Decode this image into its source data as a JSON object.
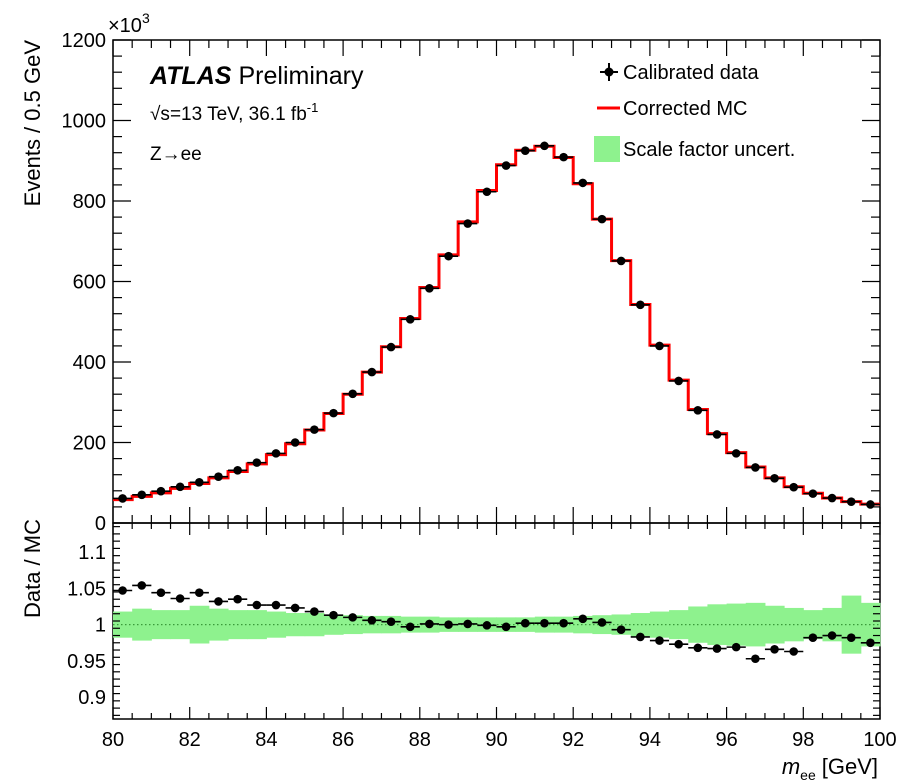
{
  "chart_data": {
    "type": "histogram",
    "top_panel": {
      "ylabel": "Events / 0.5 GeV",
      "y_multiplier": "×10",
      "y_multiplier_exp": "3",
      "ylim": [
        0,
        1200
      ],
      "yticks": [
        "0",
        "200",
        "400",
        "600",
        "800",
        "1000",
        "1200"
      ],
      "atlas_label": "ATLAS",
      "atlas_sub": "Preliminary",
      "energy_sqrt": "√s",
      "energy_text": "=13 TeV, 36.1 fb",
      "energy_exp": "-1",
      "process": "Z→ee",
      "legend": {
        "data": "Calibrated data",
        "mc": "Corrected MC",
        "uncert": "Scale factor uncert."
      },
      "bin_width": 0.5,
      "bin_edges_start": 80,
      "mc_values": [
        58,
        66,
        75,
        86,
        98,
        112,
        128,
        147,
        170,
        197,
        231,
        272,
        320,
        375,
        438,
        508,
        585,
        666,
        748,
        826,
        890,
        926,
        936,
        908,
        843,
        755,
        652,
        543,
        442,
        355,
        282,
        222,
        175,
        139,
        112,
        90,
        74,
        62,
        53,
        47
      ],
      "data_values": [
        61,
        70,
        79,
        90,
        101,
        115,
        131,
        150,
        173,
        200,
        232,
        273,
        321,
        375,
        437,
        506,
        583,
        663,
        744,
        823,
        888,
        925,
        937,
        909,
        845,
        755,
        651,
        542,
        440,
        353,
        280,
        220,
        173,
        138,
        111,
        89,
        73,
        62,
        53,
        46
      ]
    },
    "bottom_panel": {
      "ylabel": "Data / MC",
      "ylim": [
        0.87,
        1.14
      ],
      "yticks": [
        "0.9",
        "0.95",
        "1",
        "1.05",
        "1.1"
      ],
      "ytick_values": [
        0.9,
        0.95,
        1.0,
        1.05,
        1.1
      ],
      "ratio_values": [
        1.047,
        1.054,
        1.044,
        1.036,
        1.044,
        1.032,
        1.035,
        1.027,
        1.027,
        1.023,
        1.018,
        1.013,
        1.01,
        1.006,
        1.004,
        0.997,
        1.001,
        1.0,
        1.001,
        0.999,
        0.997,
        1.002,
        1.002,
        1.002,
        1.008,
        1.003,
        0.993,
        0.983,
        0.978,
        0.973,
        0.968,
        0.967,
        0.969,
        0.953,
        0.966,
        0.963,
        0.982,
        0.985,
        0.982,
        0.975
      ],
      "uncert_halfwidth": [
        0.018,
        0.022,
        0.02,
        0.02,
        0.026,
        0.022,
        0.02,
        0.02,
        0.018,
        0.016,
        0.016,
        0.014,
        0.013,
        0.012,
        0.012,
        0.011,
        0.011,
        0.01,
        0.01,
        0.01,
        0.01,
        0.01,
        0.011,
        0.011,
        0.012,
        0.013,
        0.014,
        0.016,
        0.018,
        0.02,
        0.025,
        0.028,
        0.029,
        0.03,
        0.026,
        0.023,
        0.02,
        0.023,
        0.04,
        0.03
      ]
    },
    "x_axis": {
      "xlim": [
        80,
        100
      ],
      "xticks": [
        "80",
        "82",
        "84",
        "86",
        "88",
        "90",
        "92",
        "94",
        "96",
        "98",
        "100"
      ],
      "xtick_values": [
        80,
        82,
        84,
        86,
        88,
        90,
        92,
        94,
        96,
        98,
        100
      ],
      "xlabel_var": "m",
      "xlabel_sub": "ee",
      "xlabel_unit": "[GeV]"
    },
    "colors": {
      "data": "#000000",
      "mc": "#ff0000",
      "uncert": "#8ef28e",
      "reference_line": "#3a9a3a"
    }
  }
}
